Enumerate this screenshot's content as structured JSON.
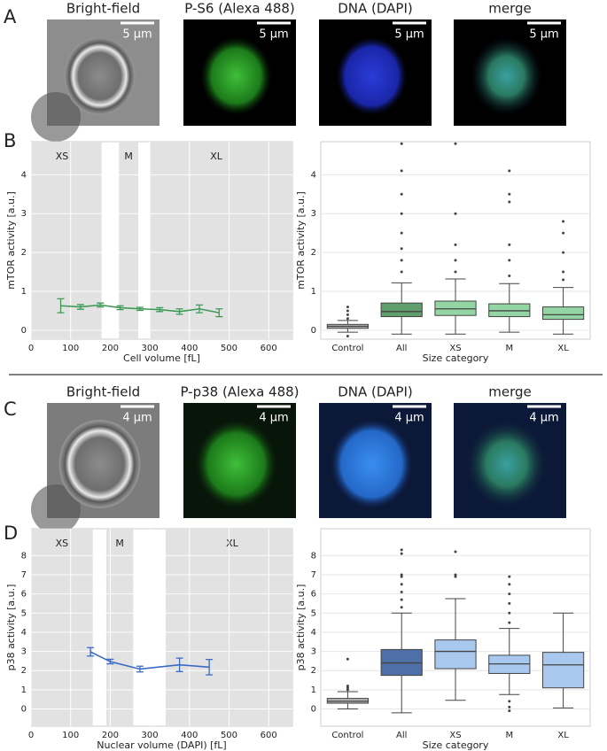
{
  "figure": {
    "panel_a": {
      "label": "A",
      "images": [
        {
          "title": "Bright-field",
          "scale": "5 µm"
        },
        {
          "title": "P-S6 (Alexa 488)",
          "scale": "5 µm"
        },
        {
          "title": "DNA (DAPI)",
          "scale": "5 µm"
        },
        {
          "title": "merge",
          "scale": "5 µm"
        }
      ]
    },
    "panel_b": {
      "label": "B"
    },
    "panel_c": {
      "label": "C",
      "images": [
        {
          "title": "Bright-field",
          "scale": "4 µm"
        },
        {
          "title": "P-p38 (Alexa 488)",
          "scale": "4 µm"
        },
        {
          "title": "DNA (DAPI)",
          "scale": "4 µm"
        },
        {
          "title": "merge",
          "scale": "4 µm"
        }
      ]
    },
    "panel_d": {
      "label": "D"
    }
  },
  "chart_data": [
    {
      "type": "line",
      "x_label": "Cell volume [fL]",
      "y_label": "mTOR activity [a.u.]",
      "x": [
        75,
        125,
        175,
        225,
        275,
        325,
        375,
        425,
        475
      ],
      "values": [
        0.63,
        0.6,
        0.65,
        0.58,
        0.55,
        0.53,
        0.48,
        0.55,
        0.45
      ],
      "errors": [
        0.18,
        0.06,
        0.05,
        0.05,
        0.04,
        0.05,
        0.07,
        0.1,
        0.1
      ],
      "color": "#3d9a55",
      "regions": [
        {
          "label": "XS",
          "range": [
            0,
            178
          ]
        },
        {
          "label": "M",
          "range": [
            222,
            271
          ]
        },
        {
          "label": "XL",
          "range": [
            300,
            660
          ]
        }
      ],
      "xlim": [
        0,
        660
      ],
      "xticks": [
        0,
        100,
        200,
        300,
        400,
        500,
        600
      ],
      "ylim": [
        -0.23,
        4.85
      ],
      "yticks": [
        0,
        1,
        2,
        3,
        4
      ],
      "grid": true
    },
    {
      "type": "box",
      "x_label": "Size category",
      "y_label": "mTOR activity [a.u.]",
      "categories": [
        "Control",
        "All",
        "XS",
        "M",
        "XL"
      ],
      "boxes": [
        {
          "whislo": -0.05,
          "q1": 0.05,
          "med": 0.1,
          "q3": 0.15,
          "whishi": 0.25,
          "outliers": [
            0.3,
            0.4,
            0.5,
            0.6,
            -0.15
          ],
          "color": "#b5b5b5"
        },
        {
          "whislo": -0.1,
          "q1": 0.35,
          "med": 0.48,
          "q3": 0.7,
          "whishi": 1.22,
          "outliers": [
            1.5,
            1.8,
            2.1,
            2.5,
            3.0,
            3.5,
            4.1,
            4.8
          ],
          "color": "#5e9f6c"
        },
        {
          "whislo": -0.1,
          "q1": 0.38,
          "med": 0.55,
          "q3": 0.75,
          "whishi": 1.32,
          "outliers": [
            1.5,
            1.8,
            2.2,
            3.0,
            4.8
          ],
          "color": "#93d6a4"
        },
        {
          "whislo": -0.05,
          "q1": 0.35,
          "med": 0.5,
          "q3": 0.68,
          "whishi": 1.2,
          "outliers": [
            1.4,
            1.8,
            2.2,
            3.3,
            3.5,
            4.1
          ],
          "color": "#93d6a4"
        },
        {
          "whislo": -0.1,
          "q1": 0.28,
          "med": 0.4,
          "q3": 0.6,
          "whishi": 1.1,
          "outliers": [
            1.3,
            1.5,
            2.0,
            2.5,
            2.8
          ],
          "color": "#93d6a4"
        }
      ],
      "ylim": [
        -0.23,
        4.85
      ],
      "yticks": [
        0,
        1,
        2,
        3,
        4
      ],
      "grid": true
    },
    {
      "type": "line",
      "x_label": "Nuclear volume (DAPI) [fL]",
      "y_label": "p38 activity [a.u.]",
      "x": [
        150,
        200,
        275,
        375,
        450
      ],
      "values": [
        2.98,
        2.47,
        2.08,
        2.3,
        2.18
      ],
      "errors": [
        0.22,
        0.12,
        0.15,
        0.35,
        0.4
      ],
      "color": "#3a6ac4",
      "regions": [
        {
          "label": "XS",
          "range": [
            0,
            156
          ]
        },
        {
          "label": "M",
          "range": [
            190,
            258
          ]
        },
        {
          "label": "XL",
          "range": [
            340,
            660
          ]
        }
      ],
      "xlim": [
        0,
        660
      ],
      "xticks": [
        0,
        100,
        200,
        300,
        400,
        500,
        600
      ],
      "ylim": [
        -0.9,
        9.4
      ],
      "yticks": [
        0,
        1,
        2,
        3,
        4,
        5,
        6,
        7,
        8
      ],
      "grid": true
    },
    {
      "type": "box",
      "x_label": "Size category",
      "y_label": "p38 activity [a.u.]",
      "categories": [
        "Control",
        "All",
        "XS",
        "M",
        "XL"
      ],
      "boxes": [
        {
          "whislo": 0,
          "q1": 0.3,
          "med": 0.4,
          "q3": 0.55,
          "whishi": 0.9,
          "outliers": [
            1.0,
            1.1,
            1.2,
            2.6
          ],
          "color": "#b5b5b5"
        },
        {
          "whislo": -0.2,
          "q1": 1.75,
          "med": 2.4,
          "q3": 3.1,
          "whishi": 5.0,
          "outliers": [
            5.3,
            5.7,
            6.1,
            6.5,
            6.9,
            7.0,
            8.1,
            8.3
          ],
          "color": "#4f6fa8"
        },
        {
          "whislo": 0.45,
          "q1": 2.1,
          "med": 3.0,
          "q3": 3.6,
          "whishi": 5.75,
          "outliers": [
            6.9,
            7.0,
            8.2
          ],
          "color": "#a8c8ee"
        },
        {
          "whislo": 0.75,
          "q1": 1.85,
          "med": 2.35,
          "q3": 2.8,
          "whishi": 4.2,
          "outliers": [
            4.5,
            5.0,
            5.5,
            6.0,
            6.5,
            6.9,
            0.4,
            0.1,
            -0.1
          ],
          "color": "#a8c8ee"
        },
        {
          "whislo": 0.05,
          "q1": 1.1,
          "med": 2.3,
          "q3": 2.95,
          "whishi": 5.0,
          "outliers": [],
          "color": "#a8c8ee"
        }
      ],
      "ylim": [
        -0.9,
        9.4
      ],
      "yticks": [
        0,
        1,
        2,
        3,
        4,
        5,
        6,
        7,
        8
      ],
      "grid": true
    }
  ]
}
